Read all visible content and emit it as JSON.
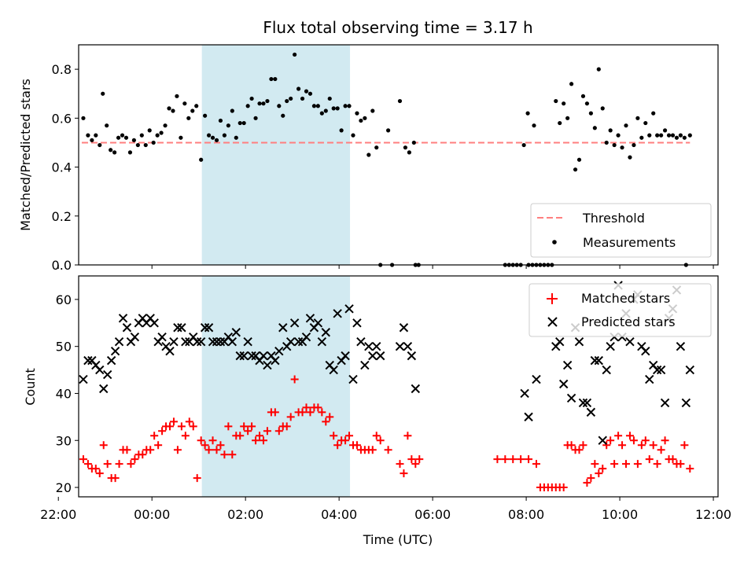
{
  "chart_data": [
    {
      "type": "scatter",
      "title": "Flux total observing time = 3.17 h",
      "xlabel": "",
      "ylabel": "Matched/Predicted stars",
      "xlim": [
        "22:26",
        "12:06"
      ],
      "ylim": [
        0,
        0.9
      ],
      "yticks": [
        0.0,
        0.2,
        0.4,
        0.6,
        0.8
      ],
      "yticklabels": [
        "0.0",
        "0.2",
        "0.4",
        "0.6",
        "0.8"
      ],
      "shaded_interval": [
        "01:04",
        "04:14"
      ],
      "shade_color": "#add8e6",
      "grid": false,
      "legend": "lower-right",
      "series": [
        {
          "name": "Threshold",
          "style": "dashed-line",
          "color": "#ff7f7f",
          "x": [
            "22:30",
            "11:30"
          ],
          "y": [
            0.5,
            0.5
          ]
        },
        {
          "name": "Measurements",
          "style": "point",
          "color": "#000000",
          "x": [
            "22:32",
            "22:38",
            "22:43",
            "22:48",
            "22:53",
            "22:57",
            "23:02",
            "23:07",
            "23:12",
            "23:17",
            "23:22",
            "23:27",
            "23:32",
            "23:37",
            "23:42",
            "23:47",
            "23:52",
            "23:57",
            "00:02",
            "00:07",
            "00:12",
            "00:17",
            "00:22",
            "00:27",
            "00:32",
            "00:37",
            "00:42",
            "00:47",
            "00:52",
            "00:57",
            "01:03",
            "01:08",
            "01:13",
            "01:18",
            "01:23",
            "01:28",
            "01:33",
            "01:38",
            "01:43",
            "01:48",
            "01:53",
            "01:58",
            "02:03",
            "02:08",
            "02:13",
            "02:18",
            "02:23",
            "02:28",
            "02:33",
            "02:38",
            "02:43",
            "02:48",
            "02:53",
            "02:58",
            "03:03",
            "03:08",
            "03:13",
            "03:18",
            "03:23",
            "03:28",
            "03:33",
            "03:38",
            "03:43",
            "03:48",
            "03:53",
            "03:58",
            "04:03",
            "04:08",
            "04:13",
            "04:18",
            "04:23",
            "04:28",
            "04:33",
            "04:38",
            "04:43",
            "04:48",
            "05:03",
            "05:18",
            "05:25",
            "05:30",
            "05:36",
            "07:57",
            "08:02",
            "08:10",
            "08:38",
            "08:43",
            "08:48",
            "08:53",
            "08:58",
            "09:03",
            "09:08",
            "09:13",
            "09:18",
            "09:23",
            "09:28",
            "09:33",
            "09:38",
            "09:43",
            "09:48",
            "09:53",
            "09:58",
            "10:03",
            "10:08",
            "10:13",
            "10:18",
            "10:23",
            "10:28",
            "10:33",
            "10:38",
            "10:43",
            "10:48",
            "10:53",
            "10:58",
            "11:03",
            "11:08",
            "11:13",
            "11:18",
            "11:23",
            "11:30",
            "04:53",
            "05:08",
            "05:38",
            "05:42",
            "07:33",
            "07:38",
            "07:43",
            "07:48",
            "07:53",
            "08:03",
            "08:08",
            "08:13",
            "08:18",
            "08:23",
            "08:28",
            "08:33",
            "11:25"
          ],
          "y": [
            0.6,
            0.53,
            0.51,
            0.53,
            0.49,
            0.7,
            0.57,
            0.47,
            0.46,
            0.52,
            0.53,
            0.52,
            0.46,
            0.51,
            0.49,
            0.53,
            0.49,
            0.55,
            0.5,
            0.53,
            0.54,
            0.57,
            0.64,
            0.63,
            0.69,
            0.52,
            0.66,
            0.6,
            0.63,
            0.65,
            0.43,
            0.61,
            0.53,
            0.52,
            0.51,
            0.59,
            0.53,
            0.57,
            0.63,
            0.52,
            0.58,
            0.58,
            0.65,
            0.68,
            0.6,
            0.66,
            0.66,
            0.67,
            0.76,
            0.76,
            0.65,
            0.61,
            0.67,
            0.68,
            0.86,
            0.72,
            0.68,
            0.71,
            0.7,
            0.65,
            0.65,
            0.62,
            0.63,
            0.68,
            0.64,
            0.64,
            0.55,
            0.65,
            0.65,
            0.53,
            0.62,
            0.59,
            0.6,
            0.45,
            0.63,
            0.48,
            0.55,
            0.67,
            0.48,
            0.46,
            0.5,
            0.49,
            0.62,
            0.57,
            0.67,
            0.58,
            0.66,
            0.6,
            0.74,
            0.39,
            0.43,
            0.69,
            0.66,
            0.62,
            0.56,
            0.8,
            0.64,
            0.5,
            0.55,
            0.49,
            0.53,
            0.48,
            0.57,
            0.44,
            0.49,
            0.6,
            0.52,
            0.58,
            0.53,
            0.62,
            0.53,
            0.53,
            0.55,
            0.53,
            0.53,
            0.52,
            0.53,
            0.52,
            0.53,
            0,
            0,
            0,
            0,
            0,
            0,
            0,
            0,
            0,
            0,
            0,
            0,
            0,
            0,
            0,
            0,
            0
          ]
        }
      ]
    },
    {
      "type": "scatter",
      "title": "",
      "xlabel": "Time (UTC)",
      "ylabel": "Count",
      "xlim": [
        "22:26",
        "12:06"
      ],
      "ylim": [
        18,
        65
      ],
      "yticks": [
        20,
        30,
        40,
        50,
        60
      ],
      "yticklabels": [
        "20",
        "30",
        "40",
        "50",
        "60"
      ],
      "xticks": [
        "22:00",
        "00:00",
        "02:00",
        "04:00",
        "06:00",
        "08:00",
        "10:00",
        "12:00"
      ],
      "shaded_interval": [
        "01:04",
        "04:14"
      ],
      "shade_color": "#add8e6",
      "grid": false,
      "legend": "upper-right",
      "series": [
        {
          "name": "Matched stars",
          "style": "plus",
          "color": "#ff0000",
          "x": [
            "22:32",
            "22:38",
            "22:43",
            "22:48",
            "22:53",
            "22:58",
            "23:03",
            "23:08",
            "23:13",
            "23:18",
            "23:23",
            "23:28",
            "23:33",
            "23:38",
            "23:43",
            "23:48",
            "23:53",
            "23:58",
            "00:03",
            "00:08",
            "00:13",
            "00:18",
            "00:23",
            "00:28",
            "00:33",
            "00:38",
            "00:43",
            "00:48",
            "00:53",
            "00:58",
            "01:03",
            "01:08",
            "01:13",
            "01:18",
            "01:23",
            "01:28",
            "01:33",
            "01:38",
            "01:43",
            "01:48",
            "01:53",
            "01:58",
            "02:03",
            "02:08",
            "02:13",
            "02:18",
            "02:23",
            "02:28",
            "02:33",
            "02:38",
            "02:43",
            "02:48",
            "02:53",
            "02:58",
            "03:03",
            "03:08",
            "03:13",
            "03:18",
            "03:23",
            "03:28",
            "03:33",
            "03:38",
            "03:43",
            "03:48",
            "03:53",
            "03:58",
            "04:03",
            "04:08",
            "04:13",
            "04:18",
            "04:23",
            "04:28",
            "04:33",
            "04:38",
            "04:43",
            "04:48",
            "04:53",
            "05:03",
            "05:18",
            "05:23",
            "05:28",
            "05:33",
            "05:38",
            "05:43",
            "07:23",
            "07:33",
            "07:43",
            "07:53",
            "08:03",
            "08:13",
            "08:18",
            "08:23",
            "08:28",
            "08:33",
            "08:38",
            "08:43",
            "08:48",
            "08:53",
            "08:58",
            "09:03",
            "09:08",
            "09:13",
            "09:18",
            "09:23",
            "09:28",
            "09:33",
            "09:38",
            "09:43",
            "09:48",
            "09:53",
            "09:58",
            "10:03",
            "10:08",
            "10:13",
            "10:18",
            "10:23",
            "10:28",
            "10:33",
            "10:38",
            "10:43",
            "10:48",
            "10:53",
            "10:58",
            "11:03",
            "11:08",
            "11:13",
            "11:18",
            "11:23",
            "11:30"
          ],
          "y": [
            26,
            25,
            24,
            24,
            23,
            29,
            25,
            22,
            22,
            25,
            28,
            28,
            25,
            26,
            27,
            27,
            28,
            28,
            31,
            29,
            32,
            33,
            33,
            34,
            28,
            33,
            31,
            34,
            33,
            22,
            30,
            29,
            28,
            30,
            28,
            29,
            27,
            33,
            27,
            31,
            31,
            33,
            32,
            33,
            30,
            31,
            30,
            32,
            36,
            36,
            32,
            33,
            33,
            35,
            43,
            36,
            36,
            37,
            36,
            37,
            37,
            36,
            34,
            35,
            31,
            29,
            30,
            30,
            31,
            29,
            29,
            28,
            28,
            28,
            28,
            31,
            30,
            28,
            25,
            23,
            31,
            26,
            25,
            26,
            26,
            26,
            26,
            26,
            26,
            25,
            20,
            20,
            20,
            20,
            20,
            20,
            20,
            29,
            29,
            28,
            28,
            29,
            21,
            22,
            25,
            23,
            24,
            29,
            30,
            25,
            31,
            29,
            25,
            31,
            30,
            25,
            29,
            30,
            26,
            29,
            25,
            28,
            30,
            26,
            26,
            25,
            25,
            29,
            24
          ]
        },
        {
          "name": "Predicted stars",
          "style": "x",
          "color": "#000000",
          "x": [
            "22:32",
            "22:38",
            "22:43",
            "22:48",
            "22:53",
            "22:58",
            "23:03",
            "23:08",
            "23:13",
            "23:18",
            "23:23",
            "23:28",
            "23:33",
            "23:38",
            "23:43",
            "23:48",
            "23:53",
            "23:58",
            "00:03",
            "00:08",
            "00:13",
            "00:18",
            "00:23",
            "00:28",
            "00:33",
            "00:38",
            "00:43",
            "00:48",
            "00:53",
            "00:58",
            "01:03",
            "01:08",
            "01:13",
            "01:18",
            "01:23",
            "01:28",
            "01:33",
            "01:38",
            "01:43",
            "01:48",
            "01:53",
            "01:58",
            "02:03",
            "02:08",
            "02:13",
            "02:18",
            "02:23",
            "02:28",
            "02:33",
            "02:38",
            "02:43",
            "02:48",
            "02:53",
            "02:58",
            "03:03",
            "03:08",
            "03:13",
            "03:18",
            "03:23",
            "03:28",
            "03:33",
            "03:38",
            "03:43",
            "03:48",
            "03:53",
            "03:58",
            "04:03",
            "04:08",
            "04:13",
            "04:18",
            "04:23",
            "04:28",
            "04:33",
            "04:38",
            "04:43",
            "04:48",
            "04:53",
            "05:18",
            "05:23",
            "05:28",
            "05:33",
            "05:38",
            "07:58",
            "08:03",
            "08:13",
            "08:38",
            "08:43",
            "08:48",
            "08:53",
            "08:58",
            "09:03",
            "09:08",
            "09:13",
            "09:18",
            "09:23",
            "09:28",
            "09:33",
            "09:38",
            "09:43",
            "09:48",
            "09:53",
            "09:58",
            "10:03",
            "10:08",
            "10:13",
            "10:18",
            "10:23",
            "10:28",
            "10:33",
            "10:38",
            "10:43",
            "10:48",
            "10:53",
            "10:58",
            "11:03",
            "11:08",
            "11:13",
            "11:18",
            "11:25",
            "11:30"
          ],
          "y": [
            43,
            47,
            47,
            46,
            45,
            41,
            44,
            47,
            49,
            51,
            56,
            54,
            51,
            52,
            55,
            56,
            55,
            56,
            55,
            51,
            52,
            50,
            49,
            51,
            54,
            54,
            51,
            51,
            52,
            51,
            51,
            54,
            54,
            51,
            51,
            51,
            51,
            52,
            51,
            53,
            48,
            48,
            51,
            48,
            48,
            47,
            48,
            46,
            48,
            47,
            49,
            54,
            50,
            51,
            55,
            51,
            51,
            52,
            56,
            54,
            55,
            51,
            53,
            46,
            45,
            57,
            47,
            48,
            58,
            43,
            55,
            51,
            46,
            50,
            48,
            50,
            48,
            50,
            54,
            50,
            48,
            41,
            40,
            35,
            43,
            50,
            51,
            42,
            46,
            39,
            54,
            51,
            38,
            38,
            36,
            47,
            47,
            30,
            45,
            50,
            52,
            63,
            52,
            57,
            51,
            60,
            61,
            50,
            49,
            43,
            46,
            45,
            45,
            38,
            56,
            58,
            62,
            50,
            38,
            45
          ]
        }
      ]
    }
  ]
}
